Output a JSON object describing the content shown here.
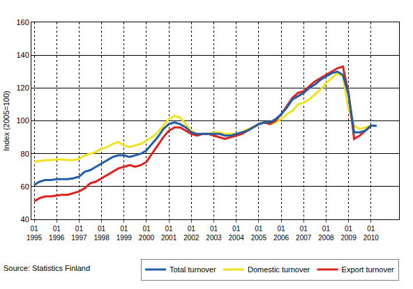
{
  "chart_data": {
    "type": "line",
    "y_label": "Index (2005=100)",
    "categories": [
      "01 1995",
      null,
      null,
      null,
      "01 1996",
      null,
      null,
      null,
      "01 1997",
      null,
      null,
      null,
      "01 1998",
      null,
      null,
      null,
      "01 1999",
      null,
      null,
      null,
      "01 2000",
      null,
      null,
      null,
      "01 2001",
      null,
      null,
      null,
      "01 2002",
      null,
      null,
      null,
      "01 2003",
      null,
      null,
      null,
      "01 2004",
      null,
      null,
      null,
      "01 2005",
      null,
      null,
      null,
      "01 2006",
      null,
      null,
      null,
      "01 2007",
      null,
      null,
      null,
      "01 2008",
      null,
      null,
      null,
      "01 2009",
      null,
      null,
      null,
      "01 2010",
      null
    ],
    "series": [
      {
        "name": "Total turnover",
        "color": "#1f5ea8",
        "values": [
          61,
          63,
          64,
          64,
          64.5,
          64.5,
          64.5,
          65,
          66,
          69,
          70,
          72,
          74,
          76,
          78,
          79,
          79,
          78,
          79,
          80,
          82,
          86,
          90,
          95,
          98,
          99,
          98,
          96,
          93,
          92,
          92,
          92,
          92,
          92,
          91,
          91,
          92,
          93,
          94,
          96,
          98,
          99,
          99,
          101,
          104,
          108,
          113,
          115,
          117,
          120,
          122,
          125,
          127,
          129,
          130,
          128,
          116,
          93,
          93,
          94,
          97,
          97
        ]
      },
      {
        "name": "Domestic turnover",
        "color": "#f2e21c",
        "values": [
          75,
          75.5,
          76,
          76,
          76.5,
          76.5,
          76,
          76,
          77,
          79,
          80,
          81,
          83,
          84,
          86,
          87,
          85,
          84,
          85,
          86,
          88,
          90,
          93,
          97,
          101,
          103,
          102,
          98,
          94,
          92,
          92,
          92,
          93,
          93,
          92,
          92,
          92,
          93,
          95,
          96,
          98,
          99,
          98,
          99,
          101,
          104,
          106,
          110,
          111,
          113,
          116,
          119,
          123,
          126,
          129,
          127,
          107,
          97,
          95,
          96,
          97,
          97
        ]
      },
      {
        "name": "Export turnover",
        "color": "#e0201c",
        "values": [
          51,
          53,
          54,
          54,
          54.5,
          55,
          55,
          56,
          57,
          59,
          62,
          63,
          65,
          67,
          69,
          71,
          72,
          73,
          72,
          73,
          75,
          80,
          85,
          90,
          94,
          96,
          96,
          94,
          92,
          91,
          92,
          92,
          91,
          90,
          89,
          90,
          91,
          92,
          94,
          96,
          98,
          99,
          98,
          100,
          104,
          109,
          114,
          117,
          118,
          121,
          124,
          126,
          128,
          130,
          132,
          133,
          117,
          89,
          91,
          94,
          97,
          97
        ]
      }
    ],
    "ylim": [
      40,
      160
    ],
    "yticks": [
      40,
      60,
      80,
      100,
      120,
      140,
      160
    ],
    "grid": true,
    "legend": "bottom right",
    "annotations": [
      {
        "text": "Source: Statistics Finland"
      }
    ]
  }
}
